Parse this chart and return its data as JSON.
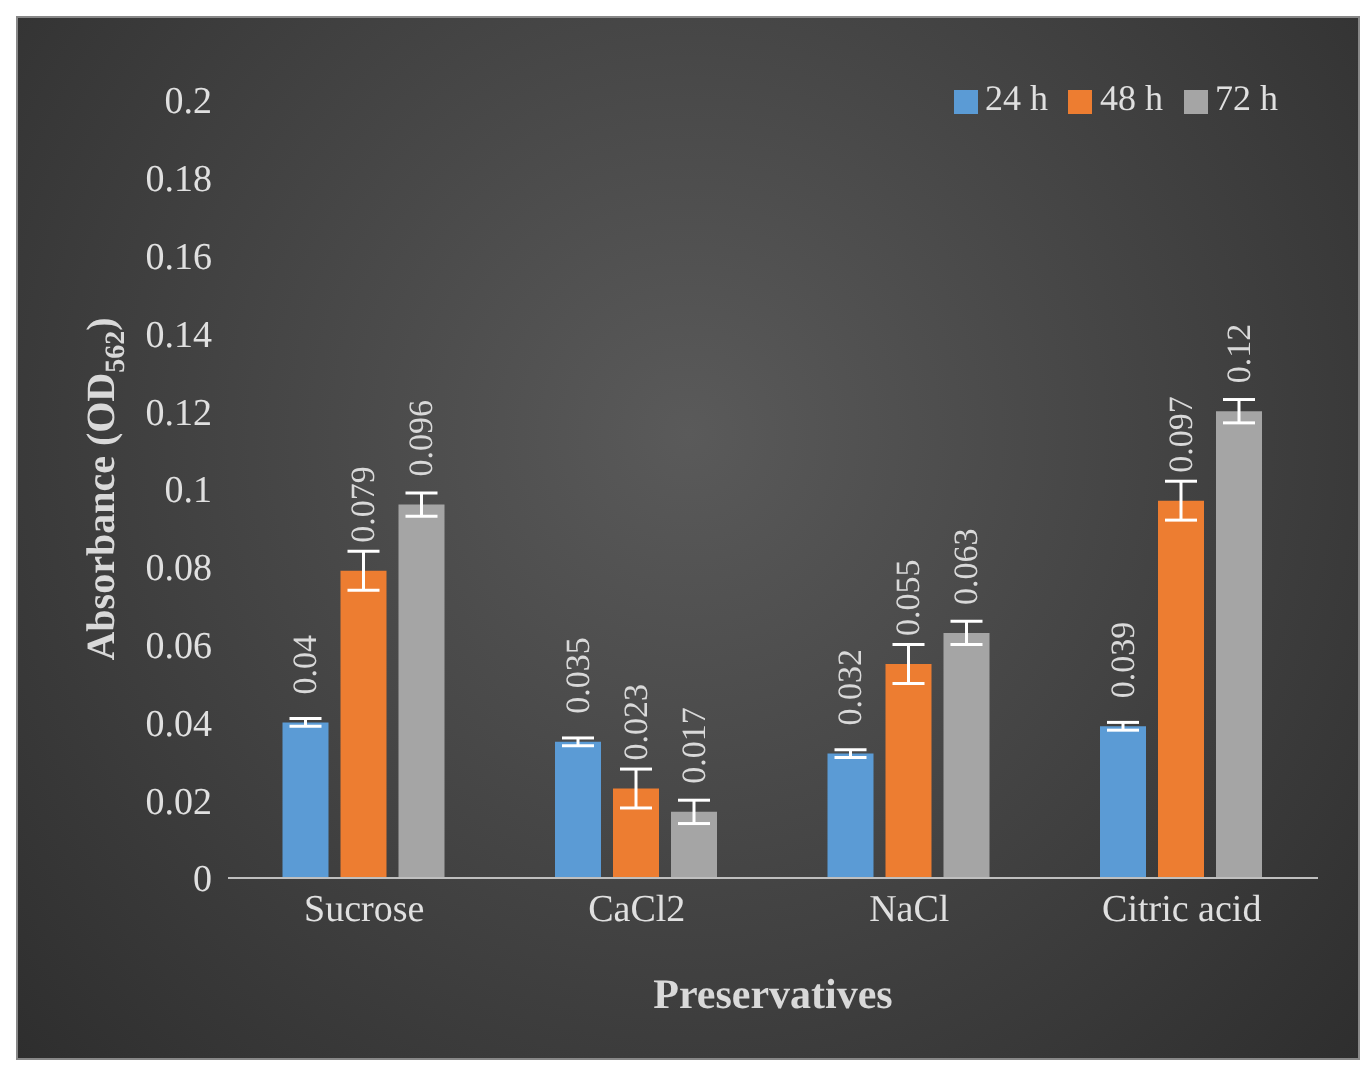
{
  "chart_data": {
    "type": "bar",
    "xlabel": "Preservatives",
    "ylabel": "Absorbance (OD$_{562}$)",
    "categories": [
      "Sucrose",
      "CaCl2",
      "NaCl",
      "Citric acid"
    ],
    "series": [
      {
        "name": "24 h",
        "color": "#5b9bd5",
        "values": [
          0.04,
          0.035,
          0.032,
          0.039
        ],
        "errors": [
          0.001,
          0.001,
          0.001,
          0.001
        ]
      },
      {
        "name": "48 h",
        "color": "#ed7d31",
        "values": [
          0.079,
          0.023,
          0.055,
          0.097
        ],
        "errors": [
          0.005,
          0.005,
          0.005,
          0.005
        ]
      },
      {
        "name": "72 h",
        "color": "#a5a5a5",
        "values": [
          0.096,
          0.017,
          0.063,
          0.12
        ],
        "errors": [
          0.003,
          0.003,
          0.003,
          0.003
        ]
      }
    ],
    "ylim": [
      0,
      0.2
    ],
    "yticks": [
      0,
      0.02,
      0.04,
      0.06,
      0.08,
      0.1,
      0.12,
      0.14,
      0.16,
      0.18,
      0.2
    ],
    "grid": false,
    "legend": "top right",
    "data_labels": true
  }
}
